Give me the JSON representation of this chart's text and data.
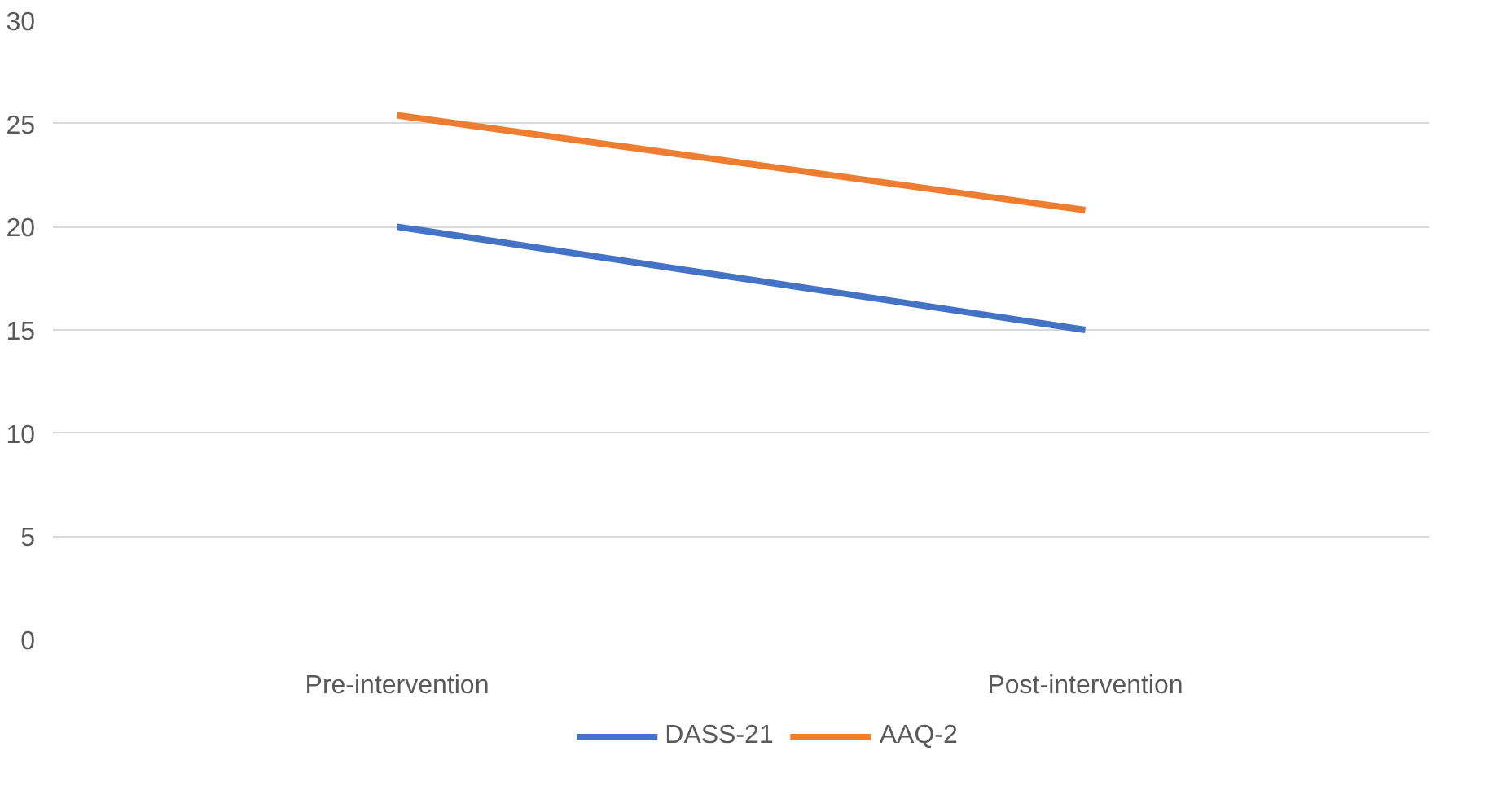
{
  "chart_data": {
    "type": "line",
    "categories": [
      "Pre-intervention",
      "Post-intervention"
    ],
    "series": [
      {
        "name": "DASS-21",
        "color": "#4472c4",
        "values": [
          20,
          15
        ]
      },
      {
        "name": "AAQ-2",
        "color": "#ed7d31",
        "values": [
          25.4,
          20.8
        ]
      }
    ],
    "ylim": [
      0,
      30
    ],
    "yticks": [
      0,
      5,
      10,
      15,
      20,
      25,
      30
    ],
    "grid": "y",
    "legend": "bottom",
    "marker": "none",
    "line_style": "solid"
  }
}
